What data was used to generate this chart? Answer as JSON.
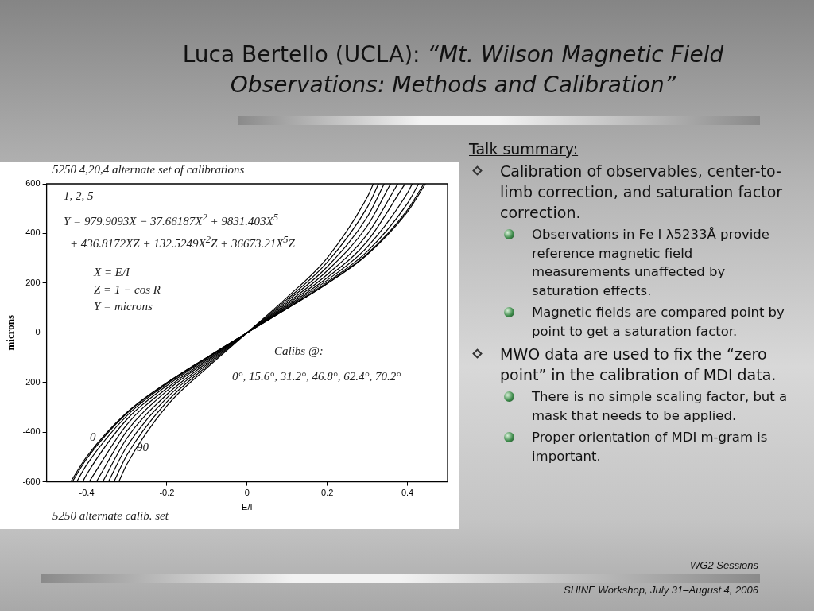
{
  "chart_data": {
    "type": "line",
    "title": "Luca Bertello (UCLA):",
    "subtitle": "“Mt. Wilson Magnetic Field Observations: Methods and Calibration”",
    "xlabel": "E/I",
    "ylabel": "microns",
    "xlim": [
      -0.5,
      0.5
    ],
    "xticks": [
      -0.4,
      -0.2,
      0,
      0.2,
      0.4
    ],
    "ylim": [
      -600,
      600
    ],
    "yticks": [
      -600,
      -400,
      -200,
      0,
      200,
      400,
      600
    ],
    "legend": false,
    "marker": "none",
    "series": [
      {
        "color": "#000000",
        "x": [
          -0.44,
          -0.4,
          -0.3,
          -0.2,
          -0.1,
          0,
          0.1,
          0.2,
          0.3,
          0.4,
          0.445
        ],
        "values": [
          -600,
          -499,
          -321,
          -201,
          -99,
          0,
          98,
          198,
          315,
          487,
          600
        ]
      },
      {
        "color": "#000000",
        "x": [
          -0.436,
          -0.4,
          -0.3,
          -0.2,
          -0.1,
          0,
          0.1,
          0.2,
          0.3,
          0.4,
          0.441
        ],
        "values": [
          -600,
          -507,
          -324,
          -202,
          -99,
          0,
          98,
          199,
          318,
          495,
          600
        ]
      },
      {
        "color": "#000000",
        "x": [
          -0.425,
          -0.4,
          -0.3,
          -0.2,
          -0.1,
          0,
          0.1,
          0.2,
          0.3,
          0.4,
          0.428
        ],
        "values": [
          -600,
          -531,
          -334,
          -206,
          -101,
          0,
          100,
          204,
          328,
          521,
          600
        ]
      },
      {
        "color": "#000000",
        "x": [
          -0.41,
          -0.4,
          -0.3,
          -0.2,
          -0.1,
          0,
          0.1,
          0.2,
          0.3,
          0.4,
          0.412
        ],
        "values": [
          -600,
          -570,
          -349,
          -213,
          -104,
          0,
          104,
          212,
          346,
          563,
          600
        ]
      },
      {
        "color": "#000000",
        "x": [
          -0.394,
          -0.3,
          -0.2,
          -0.1,
          0,
          0.1,
          0.2,
          0.3,
          0.394
        ],
        "values": [
          -600,
          -370,
          -223,
          -109,
          0,
          108,
          222,
          369,
          600
        ]
      },
      {
        "color": "#000000",
        "x": [
          -0.376,
          -0.3,
          -0.2,
          -0.1,
          0,
          0.1,
          0.2,
          0.3,
          0.376
        ],
        "values": [
          -600,
          -396,
          -234,
          -114,
          0,
          114,
          235,
          397,
          600
        ]
      },
      {
        "color": "#000000",
        "x": [
          -0.36,
          -0.3,
          -0.2,
          -0.1,
          0,
          0.1,
          0.2,
          0.3,
          0.358
        ],
        "values": [
          -600,
          -425,
          -248,
          -120,
          0,
          120,
          250,
          431,
          600
        ]
      },
      {
        "color": "#000000",
        "x": [
          -0.346,
          -0.3,
          -0.2,
          -0.1,
          0,
          0.1,
          0.2,
          0.3,
          0.342
        ],
        "values": [
          -600,
          -458,
          -262,
          -127,
          0,
          128,
          266,
          467,
          600
        ]
      },
      {
        "color": "#000000",
        "x": [
          -0.332,
          -0.3,
          -0.2,
          -0.1,
          0,
          0.1,
          0.2,
          0.3,
          0.328
        ],
        "values": [
          -600,
          -493,
          -278,
          -134,
          0,
          135,
          284,
          506,
          600
        ]
      },
      {
        "color": "#000000",
        "x": [
          -0.32,
          -0.3,
          -0.2,
          -0.1,
          0,
          0.1,
          0.2,
          0.3,
          0.315
        ],
        "values": [
          -600,
          -530,
          -294,
          -141,
          0,
          143,
          302,
          547,
          600
        ]
      }
    ],
    "annotations": [
      "5250   4,20,4   alternate set of calibrations",
      "1, 2, 5",
      "Y = 979.9093X − 37.66187X$^{2}$ + 9831.403X$^{5}$",
      "+ 436.8172XZ + 132.5249X$^{2}$Z + 36673.21X$^{5}$Z",
      "X = E/I",
      "Z = 1 − cos R",
      "Y = microns",
      "Calibs @:",
      "0°, 15.6°, 31.2°, 46.8°, 62.4°, 70.2°",
      "5250    alternate calib. set",
      "Talk summary:",
      "Calibration of observables, center-to-limb correction, and saturation factor correction.",
      "Observations in Fe I λ5233Å provide reference magnetic field measurements unaffected by saturation effects.",
      "Magnetic fields are compared point by point to get a saturation factor.",
      "MWO data are used to fix the “zero point” in the calibration of MDI data.",
      "There is no simple scaling factor, but a mask that needs to be applied.",
      "Proper orientation of MDI m-gram is important.",
      "WG2 Sessions",
      "SHINE Workshop, July 31–August 4, 2006",
      "0",
      "90"
    ]
  }
}
